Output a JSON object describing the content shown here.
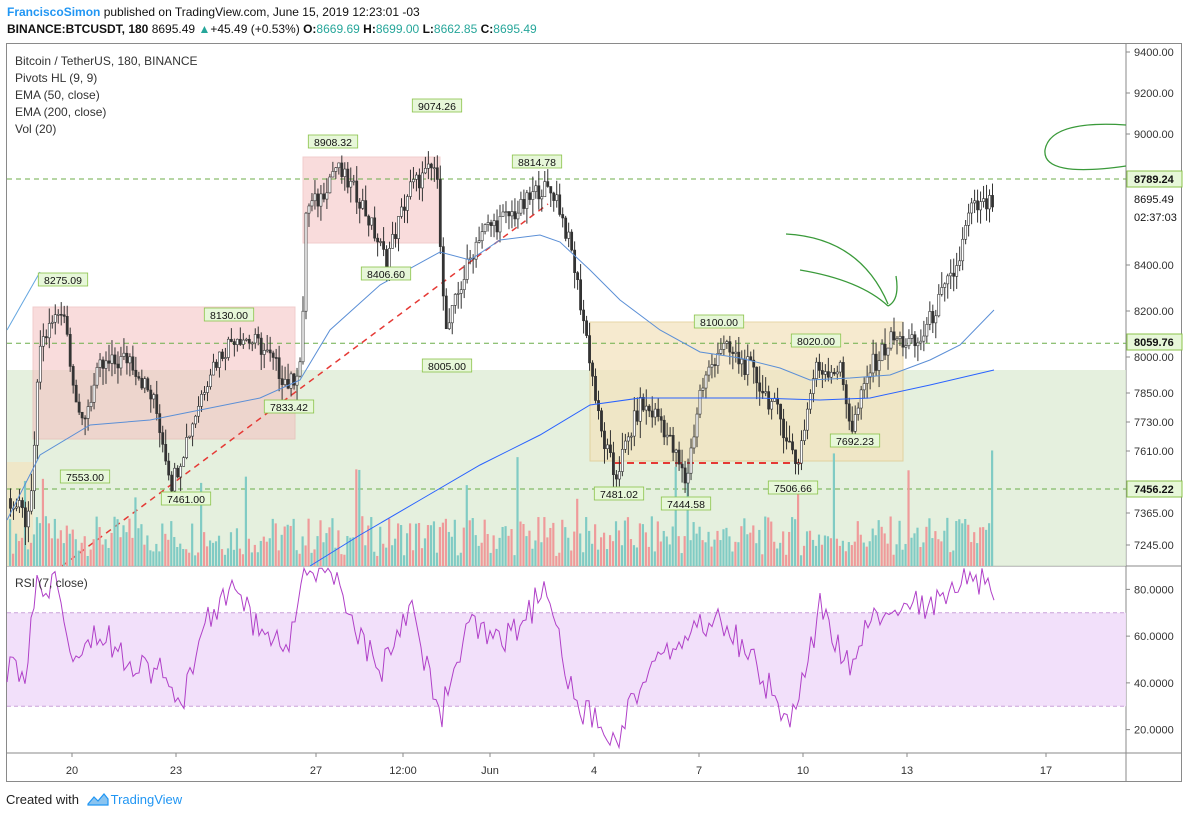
{
  "header": {
    "user": "FranciscoSimon",
    "published": " published on TradingView.com, June 15, 2019 12:23:01 -03",
    "symbol": "BINANCE:BTCUSDT, 180",
    "last": "8695.49",
    "change": "+45.49 (+0.53%)",
    "o_label": "O:",
    "o_value": "8669.69",
    "h_label": "H:",
    "h_value": "8699.00",
    "l_label": "L:",
    "l_value": "8662.85",
    "c_label": "C:",
    "c_value": "8695.49"
  },
  "legend": {
    "title": "Bitcoin / TetherUS, 180, BINANCE",
    "ind1": "Pivots HL (9, 9)",
    "ind2": "EMA (50, close)",
    "ind3": "EMA (200, close)",
    "ind4": "Vol (20)",
    "rsi": "RSI (7, close)"
  },
  "colors": {
    "up": "#26a69a",
    "down": "#ef5350",
    "ema50": "#5b8fd6",
    "ema200": "#2962ff",
    "rsi": "#b040c8",
    "box_red": "#f5c0c0",
    "box_yellow": "#f3e3bf",
    "box_green": "#dcebd3",
    "pivot_bg": "#e7f7d9",
    "drawing": "#3a9a3a"
  },
  "price_axis": {
    "ticks": [
      "9400.00",
      "9200.00",
      "9000.00",
      "8400.00",
      "8200.00",
      "8000.00",
      "7850.00",
      "7730.00",
      "7610.00",
      "7365.00",
      "7245.00"
    ],
    "marks": [
      "8789.24",
      "8695.49",
      "02:37:03",
      "8059.76",
      "7456.22"
    ]
  },
  "rsi_axis": {
    "ticks": [
      "80.0000",
      "60.0000",
      "40.0000",
      "20.0000"
    ]
  },
  "time_axis": {
    "ticks": [
      "20",
      "23",
      "27",
      "12:00",
      "Jun",
      "4",
      "7",
      "10",
      "13",
      "17"
    ]
  },
  "pivots": [
    "8275.09",
    "7553.00",
    "7461.00",
    "8130.00",
    "7833.42",
    "8908.32",
    "9074.26",
    "8406.60",
    "8005.00",
    "8814.78",
    "8100.00",
    "7481.02",
    "7444.58",
    "8020.00",
    "7506.66",
    "7692.23"
  ],
  "footer": {
    "created": "Created with",
    "brand": "TradingView"
  },
  "chart_data": {
    "type": "candlestick",
    "title": "Bitcoin / TetherUS, 180, BINANCE",
    "x": [
      "20",
      "23",
      "27",
      "12:00",
      "Jun",
      "4",
      "7",
      "10",
      "13",
      "17"
    ],
    "price_range": [
      7200,
      9400
    ],
    "horizontal_levels": [
      8789.24,
      8059.76,
      7456.22
    ],
    "pivot_highs": [
      8275.09,
      8130.0,
      8908.32,
      9074.26,
      8814.78,
      8100.0,
      8020.0
    ],
    "pivot_lows": [
      7553.0,
      7461.0,
      7833.42,
      8406.6,
      8005.0,
      7481.02,
      7444.58,
      7506.66,
      7692.23
    ],
    "last_price": 8695.49,
    "rsi": {
      "range": [
        10,
        90
      ],
      "band": [
        30,
        70
      ]
    }
  }
}
